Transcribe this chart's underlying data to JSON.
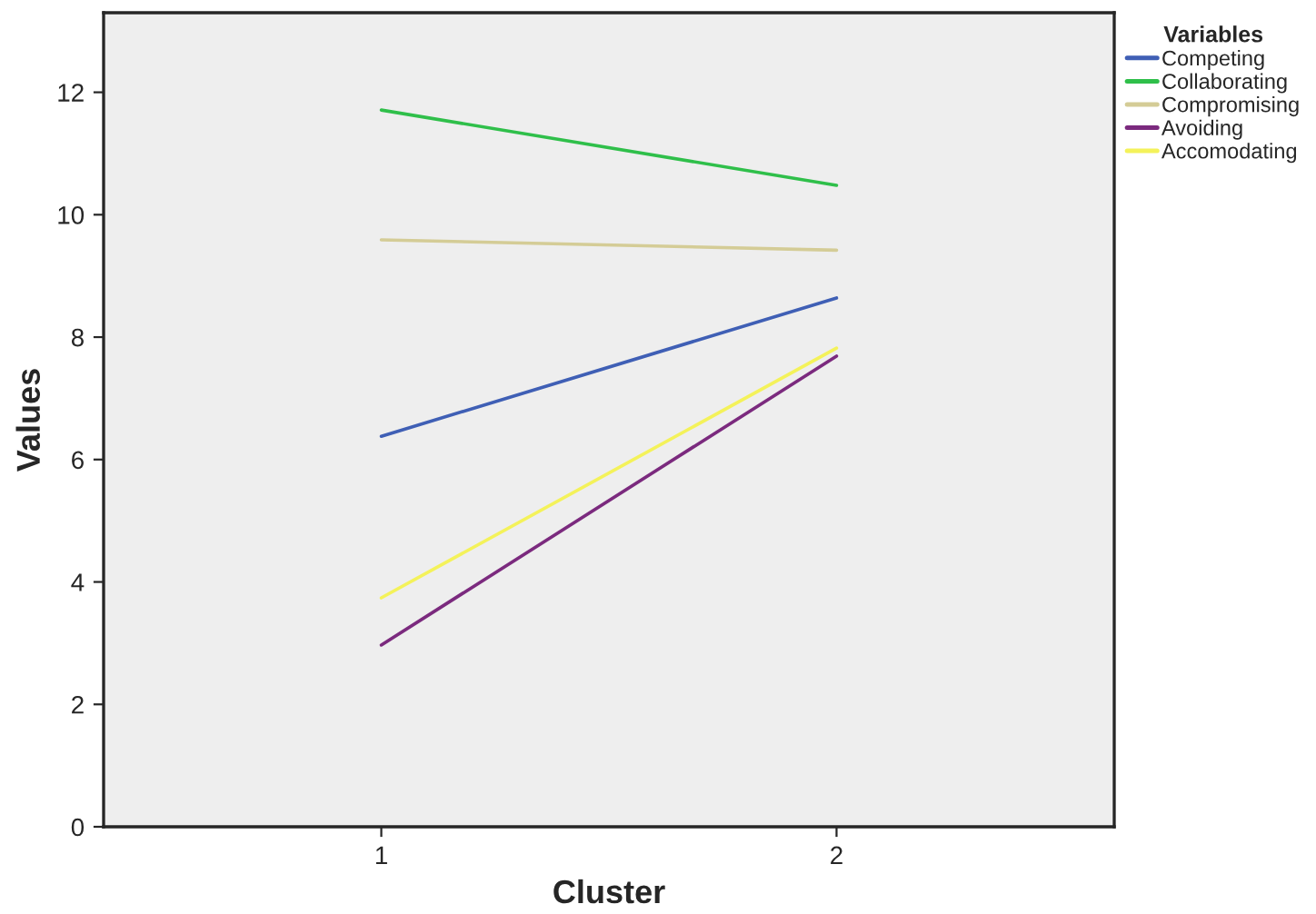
{
  "chart_data": {
    "type": "line",
    "xlabel": "Cluster",
    "ylabel": "Values",
    "legend_title": "Variables",
    "legend": "top right",
    "grid": false,
    "marker": "none",
    "line_style": "solid",
    "x": [
      1,
      2
    ],
    "xlim": [
      0.39,
      2.61
    ],
    "xticks": [
      1,
      2
    ],
    "ylim": [
      0,
      13.3
    ],
    "yticks": [
      0,
      2,
      4,
      6,
      8,
      10,
      12
    ],
    "series": [
      {
        "name": "Competing",
        "color": "#3f5fb5",
        "values": [
          6.38,
          8.64
        ]
      },
      {
        "name": "Collaborating",
        "color": "#2fbf4a",
        "values": [
          11.71,
          10.48
        ]
      },
      {
        "name": "Compromising",
        "color": "#d4cc96",
        "values": [
          9.59,
          9.42
        ]
      },
      {
        "name": "Avoiding",
        "color": "#7b2a7e",
        "values": [
          2.97,
          7.69
        ]
      },
      {
        "name": "Accomodating",
        "color": "#f4f25a",
        "values": [
          3.74,
          7.82
        ]
      }
    ]
  }
}
